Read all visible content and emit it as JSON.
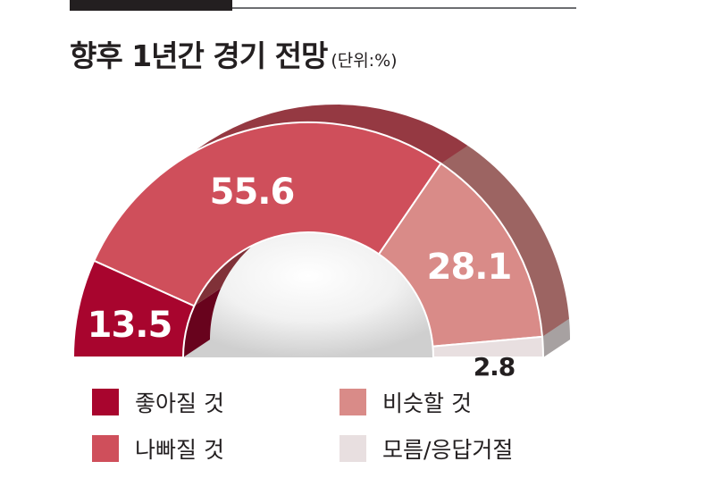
{
  "title": "향후 1년간 경기 전망",
  "unit": "(단위:%)",
  "colors": {
    "good": "#a8052e",
    "bad": "#cf4f5b",
    "similar": "#d98b88",
    "unknown": "#e8dfe0"
  },
  "chart_data": {
    "type": "pie",
    "style": "3d-semi-donut",
    "categories": [
      "좋아질 것",
      "나빠질 것",
      "비슷할 것",
      "모름/응답거절"
    ],
    "values": [
      13.5,
      55.6,
      28.1,
      2.8
    ],
    "value_labels": [
      "13.5",
      "55.6",
      "28.1",
      "2.8"
    ],
    "legend_placement": "bottom"
  },
  "legend": [
    {
      "label": "좋아질 것",
      "color_key": "good"
    },
    {
      "label": "비슷할 것",
      "color_key": "similar"
    },
    {
      "label": "나빠질 것",
      "color_key": "bad"
    },
    {
      "label": "모름/응답거절",
      "color_key": "unknown"
    }
  ]
}
